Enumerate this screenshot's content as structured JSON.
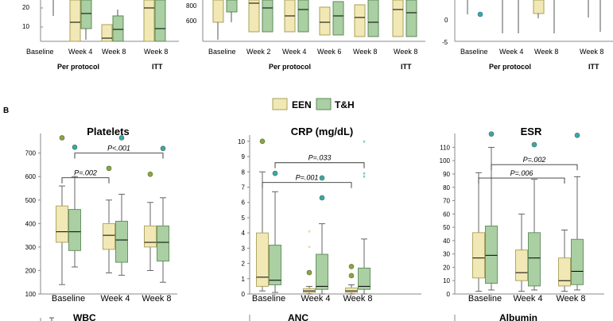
{
  "colors": {
    "een_fill": "#f1e8b6",
    "een_edge": "#a9a05a",
    "th_fill": "#a9cfa2",
    "th_edge": "#5f8a5a",
    "outlier_teal": "#3aa6b0",
    "outlier_olive": "#8fa43a",
    "outlier_gold": "#d7c67a",
    "bracket": "#333333"
  },
  "panel_b_label": "B",
  "legend": {
    "een": "EEN",
    "th": "T&H"
  },
  "top_row": {
    "left": {
      "yticks": [
        "10",
        "20"
      ],
      "groups": [
        "Baseline",
        "Week 4",
        "Week 8",
        "Week 8"
      ],
      "subtitle": "Per protocol",
      "itt": "ITT"
    },
    "middle": {
      "yticks": [
        "800",
        "600"
      ],
      "groups": [
        "Baseline",
        "Week 2",
        "Week 4",
        "Week 6",
        "Week 8",
        "Week 8"
      ],
      "subtitle": "Per protocol",
      "itt": "ITT"
    },
    "right": {
      "yticks": [
        "0",
        "-5"
      ],
      "groups": [
        "Baseline",
        "Week 4",
        "Week 8",
        "Week 8"
      ],
      "subtitle": "Per protocol",
      "itt": "ITT"
    }
  },
  "bottom_row_titles": {
    "left": "WBC",
    "middle": "ANC",
    "right": "Albumin"
  },
  "chart_data": [
    {
      "type": "box",
      "title": "Platelets",
      "ylim": [
        100,
        770
      ],
      "yticks": [
        100,
        200,
        300,
        400,
        500,
        600,
        700
      ],
      "categories": [
        "Baseline",
        "Week 4",
        "Week 8"
      ],
      "series": [
        {
          "name": "EEN",
          "boxes": [
            {
              "min": 140,
              "q1": 320,
              "median": 365,
              "q3": 475,
              "max": 560
            },
            {
              "min": 190,
              "q1": 290,
              "median": 350,
              "q3": 400,
              "max": 500
            },
            {
              "min": 200,
              "q1": 300,
              "median": 320,
              "q3": 390,
              "max": 490
            }
          ]
        },
        {
          "name": "T&H",
          "boxes": [
            {
              "min": 215,
              "q1": 285,
              "median": 365,
              "q3": 460,
              "max": 600
            },
            {
              "min": 180,
              "q1": 235,
              "median": 330,
              "q3": 410,
              "max": 525
            },
            {
              "min": 150,
              "q1": 240,
              "median": 320,
              "q3": 390,
              "max": 510
            }
          ]
        }
      ],
      "outliers": [
        {
          "category": "Baseline",
          "series": "EEN",
          "value": 765
        },
        {
          "category": "Baseline",
          "series": "T&H",
          "value": 725
        },
        {
          "category": "Week 4",
          "series": "EEN",
          "value": 635
        },
        {
          "category": "Week 4",
          "series": "T&H",
          "value": 765
        },
        {
          "category": "Week 8",
          "series": "EEN",
          "value": 610
        },
        {
          "category": "Week 8",
          "series": "T&H",
          "value": 720
        }
      ],
      "annotations": [
        {
          "text": "P<.001",
          "from": "Baseline T&H",
          "to": "Week 8 T&H",
          "y": 700
        },
        {
          "text": "P=.002",
          "from": "Baseline EEN",
          "to": "Week 4 EEN",
          "y": 595
        }
      ]
    },
    {
      "type": "box",
      "title": "CRP (mg/dL)",
      "ylim": [
        0,
        10.2
      ],
      "yticks": [
        0,
        1,
        2,
        3,
        4,
        5,
        6,
        7,
        8,
        9,
        10
      ],
      "categories": [
        "Baseline",
        "Week 4",
        "Week 8"
      ],
      "series": [
        {
          "name": "EEN",
          "boxes": [
            {
              "min": 0.2,
              "q1": 0.5,
              "median": 1.1,
              "q3": 4.0,
              "max": 8.0
            },
            {
              "min": 0.0,
              "q1": 0.1,
              "median": 0.2,
              "q3": 0.35,
              "max": 0.5
            },
            {
              "min": 0.0,
              "q1": 0.1,
              "median": 0.2,
              "q3": 0.4,
              "max": 0.6
            }
          ]
        },
        {
          "name": "T&H",
          "boxes": [
            {
              "min": 0.1,
              "q1": 0.6,
              "median": 0.9,
              "q3": 3.2,
              "max": 6.7
            },
            {
              "min": 0.0,
              "q1": 0.3,
              "median": 0.5,
              "q3": 2.6,
              "max": 4.6
            },
            {
              "min": 0.0,
              "q1": 0.3,
              "median": 0.5,
              "q3": 1.7,
              "max": 3.6
            }
          ]
        }
      ],
      "outliers": [
        {
          "category": "Baseline",
          "series": "EEN",
          "value": 10.0
        },
        {
          "category": "Baseline",
          "series": "T&H",
          "value": 7.9
        },
        {
          "category": "Week 4",
          "series": "EEN",
          "value": 4.0
        },
        {
          "category": "Week 4",
          "series": "EEN",
          "value": 3.0
        },
        {
          "category": "Week 4",
          "series": "EEN",
          "value": 1.4
        },
        {
          "category": "Week 4",
          "series": "T&H",
          "value": 7.6
        },
        {
          "category": "Week 4",
          "series": "T&H",
          "value": 6.3
        },
        {
          "category": "Week 8",
          "series": "EEN",
          "value": 1.8
        },
        {
          "category": "Week 8",
          "series": "EEN",
          "value": 1.2
        },
        {
          "category": "Week 8",
          "series": "T&H",
          "value": 9.9
        },
        {
          "category": "Week 8",
          "series": "T&H",
          "value": 7.8
        },
        {
          "category": "Week 8",
          "series": "T&H",
          "value": 7.6
        }
      ],
      "annotations": [
        {
          "text": "P=.033",
          "from": "Baseline T&H",
          "to": "Week 8 T&H",
          "y": 8.6
        },
        {
          "text": "P=.001",
          "from": "Baseline EEN",
          "to": "Week 8 EEN",
          "y": 7.3
        }
      ]
    },
    {
      "type": "box",
      "title": "ESR",
      "ylim": [
        0,
        118
      ],
      "yticks": [
        0,
        10,
        20,
        30,
        40,
        50,
        60,
        70,
        80,
        90,
        100,
        110
      ],
      "categories": [
        "Baseline",
        "Week 4",
        "Week 8"
      ],
      "series": [
        {
          "name": "EEN",
          "boxes": [
            {
              "min": 2,
              "q1": 12,
              "median": 27,
              "q3": 46,
              "max": 91
            },
            {
              "min": 2,
              "q1": 10,
              "median": 16,
              "q3": 33,
              "max": 60
            },
            {
              "min": 2,
              "q1": 6,
              "median": 10,
              "q3": 27,
              "max": 48
            }
          ]
        },
        {
          "name": "T&H",
          "boxes": [
            {
              "min": 3,
              "q1": 8,
              "median": 29,
              "q3": 51,
              "max": 110
            },
            {
              "min": 3,
              "q1": 6,
              "median": 27,
              "q3": 46,
              "max": 86
            },
            {
              "min": 3,
              "q1": 7,
              "median": 17,
              "q3": 41,
              "max": 88
            }
          ]
        }
      ],
      "outliers": [
        {
          "category": "Baseline",
          "series": "T&H",
          "value": 120
        },
        {
          "category": "Week 4",
          "series": "T&H",
          "value": 112
        },
        {
          "category": "Week 8",
          "series": "T&H",
          "value": 119
        }
      ],
      "annotations": [
        {
          "text": "P=.002",
          "from": "Baseline T&H",
          "to": "Week 8 T&H",
          "y": 97
        },
        {
          "text": "P=.006",
          "from": "Baseline EEN",
          "to": "Week 8 EEN",
          "y": 87
        }
      ]
    }
  ]
}
